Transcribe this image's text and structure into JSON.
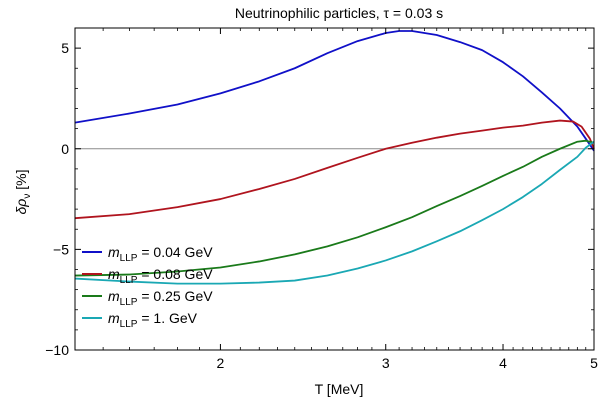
{
  "chart_data": {
    "type": "line",
    "title": "Neutrinophilic particles, τ = 0.03 s",
    "xlabel": "T [MeV]",
    "ylabel": "δρν [%]",
    "xscale": "log",
    "xlim": [
      1.4,
      5.0
    ],
    "ylim": [
      -10,
      6
    ],
    "xticks": [
      2,
      3,
      4,
      5
    ],
    "yticks": [
      5,
      0,
      -5,
      -10
    ],
    "ytick_labels": [
      "5",
      "0",
      "−5",
      "−10"
    ],
    "zero_line": true,
    "grid": false,
    "legend_position": "bottom-left",
    "series": [
      {
        "name": "m_LLP = 0.04 GeV",
        "color": "#1010c8",
        "x": [
          1.4,
          1.6,
          1.8,
          2.0,
          2.2,
          2.4,
          2.6,
          2.8,
          3.0,
          3.1,
          3.2,
          3.4,
          3.6,
          3.8,
          4.0,
          4.2,
          4.4,
          4.6,
          4.8,
          4.9,
          5.0
        ],
        "y": [
          1.3,
          1.75,
          2.2,
          2.75,
          3.35,
          4.0,
          4.75,
          5.35,
          5.75,
          5.85,
          5.85,
          5.65,
          5.3,
          4.9,
          4.3,
          3.6,
          2.8,
          2.0,
          1.1,
          0.5,
          -0.1
        ]
      },
      {
        "name": "m_LLP = 0.08 GeV",
        "color": "#b0141e",
        "x": [
          1.4,
          1.6,
          1.8,
          2.0,
          2.2,
          2.4,
          2.6,
          2.8,
          3.0,
          3.2,
          3.4,
          3.6,
          3.8,
          4.0,
          4.2,
          4.4,
          4.6,
          4.75,
          4.85,
          4.95,
          5.0
        ],
        "y": [
          -3.45,
          -3.25,
          -2.9,
          -2.5,
          -2.0,
          -1.5,
          -0.95,
          -0.45,
          0.0,
          0.3,
          0.55,
          0.75,
          0.9,
          1.05,
          1.15,
          1.3,
          1.4,
          1.35,
          1.1,
          0.5,
          0.0
        ]
      },
      {
        "name": "m_LLP = 0.25 GeV",
        "color": "#1a7a1a",
        "x": [
          1.4,
          1.6,
          1.8,
          2.0,
          2.2,
          2.4,
          2.6,
          2.8,
          3.0,
          3.2,
          3.4,
          3.6,
          3.8,
          4.0,
          4.2,
          4.4,
          4.6,
          4.8,
          4.9,
          5.0
        ],
        "y": [
          -6.3,
          -6.25,
          -6.1,
          -5.9,
          -5.6,
          -5.25,
          -4.85,
          -4.4,
          -3.9,
          -3.4,
          -2.85,
          -2.35,
          -1.85,
          -1.35,
          -0.9,
          -0.4,
          0.0,
          0.35,
          0.4,
          0.3
        ]
      },
      {
        "name": "m_LLP = 1. GeV",
        "color": "#1aa8b4",
        "x": [
          1.4,
          1.6,
          1.8,
          2.0,
          2.2,
          2.4,
          2.6,
          2.8,
          3.0,
          3.2,
          3.4,
          3.6,
          3.8,
          4.0,
          4.2,
          4.4,
          4.6,
          4.8,
          4.9,
          5.0
        ],
        "y": [
          -6.45,
          -6.6,
          -6.7,
          -6.7,
          -6.65,
          -6.55,
          -6.3,
          -5.95,
          -5.55,
          -5.1,
          -4.6,
          -4.1,
          -3.55,
          -3.0,
          -2.4,
          -1.75,
          -1.05,
          -0.4,
          0.05,
          0.35
        ]
      }
    ],
    "legend_labels": [
      {
        "symbol": "m",
        "sub": "LLP",
        "rest": " = 0.04 GeV"
      },
      {
        "symbol": "m",
        "sub": "LLP",
        "rest": " = 0.08 GeV"
      },
      {
        "symbol": "m",
        "sub": "LLP",
        "rest": " = 0.25 GeV"
      },
      {
        "symbol": "m",
        "sub": "LLP",
        "rest": " = 1. GeV"
      }
    ],
    "ylabel_parts": {
      "main": "δρ",
      "sub": "ν",
      "rest": " [%]"
    }
  }
}
